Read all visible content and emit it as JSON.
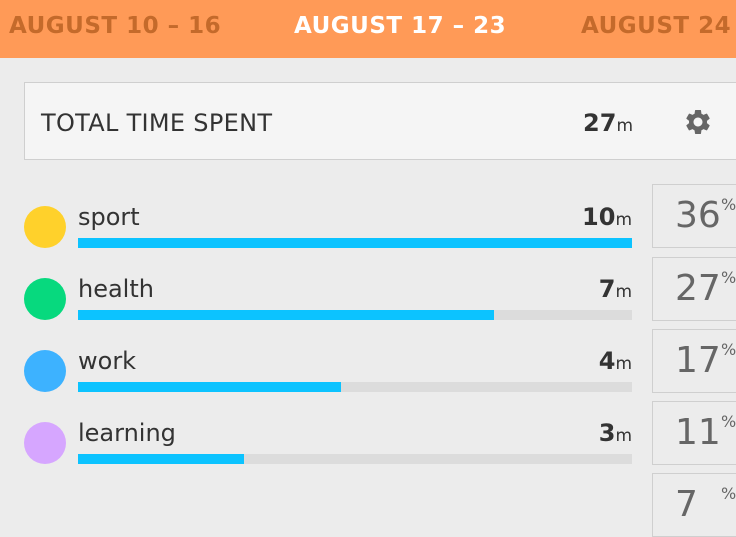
{
  "weeks": {
    "previous": "AUGUST 10 – 16",
    "current": "AUGUST 17 – 23",
    "next": "AUGUST 24 –"
  },
  "total": {
    "label": "TOTAL TIME SPENT",
    "value": "27",
    "unit": "m",
    "settings_icon": "gear-icon"
  },
  "categories": [
    {
      "label": "sport",
      "value": "10",
      "unit": "m",
      "percent": "36",
      "percent_sign": "%",
      "fill": 1.0,
      "color": "#ffd12b"
    },
    {
      "label": "health",
      "value": "7",
      "unit": "m",
      "percent": "27",
      "percent_sign": "%",
      "fill": 0.75,
      "color": "#07d97e"
    },
    {
      "label": "work",
      "value": "4",
      "unit": "m",
      "percent": "17",
      "percent_sign": "%",
      "fill": 0.475,
      "color": "#3db2ff"
    },
    {
      "label": "learning",
      "value": "3",
      "unit": "m",
      "percent": "11",
      "percent_sign": "%",
      "fill": 0.3,
      "color": "#d6a6ff"
    },
    {
      "label": "",
      "value": "",
      "unit": "",
      "percent": "7",
      "percent_sign": "%",
      "fill": 0,
      "color": "#ececec"
    }
  ],
  "colors": {
    "header": "#ff9a57",
    "bar": "#0cc3ff",
    "track": "#dcdcdc"
  }
}
